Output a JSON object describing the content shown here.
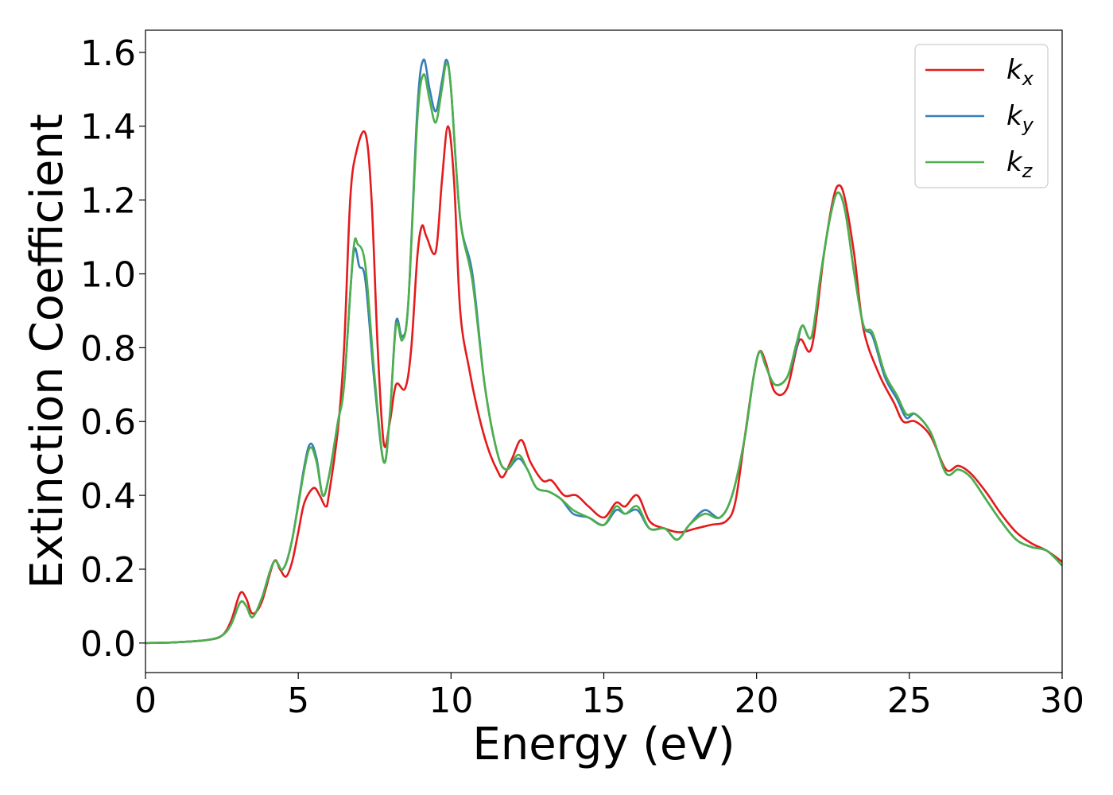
{
  "chart_data": {
    "type": "line",
    "title": "",
    "xlabel": "Energy (eV)",
    "ylabel": "Extinction Coefficient",
    "xlim": [
      0,
      30
    ],
    "ylim": [
      -0.08,
      1.66
    ],
    "xticks": [
      0,
      5,
      10,
      15,
      20,
      25,
      30
    ],
    "xtick_labels": [
      "0",
      "5",
      "10",
      "15",
      "20",
      "25",
      "30"
    ],
    "yticks": [
      0.0,
      0.2,
      0.4,
      0.6,
      0.8,
      1.0,
      1.2,
      1.4,
      1.6
    ],
    "ytick_labels": [
      "0.0",
      "0.2",
      "0.4",
      "0.6",
      "0.8",
      "1.0",
      "1.2",
      "1.4",
      "1.6"
    ],
    "grid": false,
    "legend_position": "top-right",
    "series": [
      {
        "name": "k",
        "subscript": "x",
        "color": "#e41a1c",
        "points": [
          [
            0,
            0
          ],
          [
            1,
            0.002
          ],
          [
            2,
            0.008
          ],
          [
            2.5,
            0.02
          ],
          [
            2.8,
            0.06
          ],
          [
            3.1,
            0.135
          ],
          [
            3.3,
            0.12
          ],
          [
            3.5,
            0.08
          ],
          [
            3.8,
            0.11
          ],
          [
            4.2,
            0.22
          ],
          [
            4.4,
            0.2
          ],
          [
            4.6,
            0.18
          ],
          [
            4.8,
            0.22
          ],
          [
            5.0,
            0.3
          ],
          [
            5.2,
            0.38
          ],
          [
            5.5,
            0.42
          ],
          [
            5.7,
            0.4
          ],
          [
            5.9,
            0.37
          ],
          [
            6.0,
            0.4
          ],
          [
            6.3,
            0.58
          ],
          [
            6.5,
            0.8
          ],
          [
            6.7,
            1.2
          ],
          [
            6.9,
            1.33
          ],
          [
            7.2,
            1.38
          ],
          [
            7.4,
            1.2
          ],
          [
            7.6,
            0.8
          ],
          [
            7.8,
            0.54
          ],
          [
            8.0,
            0.6
          ],
          [
            8.2,
            0.7
          ],
          [
            8.5,
            0.69
          ],
          [
            8.7,
            0.8
          ],
          [
            8.9,
            1.05
          ],
          [
            9.05,
            1.13
          ],
          [
            9.2,
            1.1
          ],
          [
            9.5,
            1.06
          ],
          [
            9.7,
            1.25
          ],
          [
            9.9,
            1.4
          ],
          [
            10.1,
            1.25
          ],
          [
            10.3,
            0.9
          ],
          [
            10.6,
            0.74
          ],
          [
            10.9,
            0.62
          ],
          [
            11.2,
            0.53
          ],
          [
            11.5,
            0.47
          ],
          [
            11.7,
            0.45
          ],
          [
            12.0,
            0.5
          ],
          [
            12.3,
            0.55
          ],
          [
            12.6,
            0.49
          ],
          [
            13.0,
            0.44
          ],
          [
            13.3,
            0.44
          ],
          [
            13.7,
            0.4
          ],
          [
            14.1,
            0.4
          ],
          [
            14.5,
            0.37
          ],
          [
            15.0,
            0.34
          ],
          [
            15.4,
            0.38
          ],
          [
            15.7,
            0.37
          ],
          [
            16.1,
            0.4
          ],
          [
            16.5,
            0.33
          ],
          [
            17.0,
            0.31
          ],
          [
            17.5,
            0.3
          ],
          [
            18.0,
            0.31
          ],
          [
            18.5,
            0.32
          ],
          [
            19.0,
            0.33
          ],
          [
            19.3,
            0.38
          ],
          [
            19.6,
            0.55
          ],
          [
            19.9,
            0.72
          ],
          [
            20.1,
            0.79
          ],
          [
            20.3,
            0.76
          ],
          [
            20.6,
            0.68
          ],
          [
            21.0,
            0.69
          ],
          [
            21.4,
            0.82
          ],
          [
            21.8,
            0.8
          ],
          [
            22.2,
            1.05
          ],
          [
            22.5,
            1.2
          ],
          [
            22.7,
            1.24
          ],
          [
            22.9,
            1.2
          ],
          [
            23.2,
            1.05
          ],
          [
            23.5,
            0.85
          ],
          [
            24.0,
            0.73
          ],
          [
            24.5,
            0.65
          ],
          [
            24.8,
            0.6
          ],
          [
            25.2,
            0.6
          ],
          [
            25.7,
            0.56
          ],
          [
            26.2,
            0.47
          ],
          [
            26.6,
            0.48
          ],
          [
            27.0,
            0.46
          ],
          [
            27.5,
            0.41
          ],
          [
            28.0,
            0.35
          ],
          [
            28.5,
            0.3
          ],
          [
            29.0,
            0.27
          ],
          [
            29.5,
            0.25
          ],
          [
            30.0,
            0.22
          ]
        ]
      },
      {
        "name": "k",
        "subscript": "y",
        "color": "#377eb8",
        "points": [
          [
            0,
            0
          ],
          [
            1,
            0.002
          ],
          [
            2,
            0.008
          ],
          [
            2.5,
            0.02
          ],
          [
            2.8,
            0.05
          ],
          [
            3.1,
            0.11
          ],
          [
            3.3,
            0.1
          ],
          [
            3.5,
            0.07
          ],
          [
            3.8,
            0.12
          ],
          [
            4.2,
            0.22
          ],
          [
            4.5,
            0.2
          ],
          [
            4.8,
            0.28
          ],
          [
            5.2,
            0.48
          ],
          [
            5.4,
            0.54
          ],
          [
            5.6,
            0.5
          ],
          [
            5.8,
            0.4
          ],
          [
            6.0,
            0.45
          ],
          [
            6.3,
            0.6
          ],
          [
            6.5,
            0.7
          ],
          [
            6.8,
            1.05
          ],
          [
            7.0,
            1.02
          ],
          [
            7.2,
            0.98
          ],
          [
            7.5,
            0.7
          ],
          [
            7.8,
            0.49
          ],
          [
            8.0,
            0.62
          ],
          [
            8.2,
            0.87
          ],
          [
            8.4,
            0.83
          ],
          [
            8.6,
            0.92
          ],
          [
            8.9,
            1.45
          ],
          [
            9.1,
            1.58
          ],
          [
            9.3,
            1.5
          ],
          [
            9.5,
            1.44
          ],
          [
            9.7,
            1.52
          ],
          [
            9.85,
            1.58
          ],
          [
            10.0,
            1.5
          ],
          [
            10.3,
            1.15
          ],
          [
            10.7,
            1.0
          ],
          [
            11.1,
            0.7
          ],
          [
            11.5,
            0.52
          ],
          [
            11.8,
            0.47
          ],
          [
            12.2,
            0.5
          ],
          [
            12.5,
            0.47
          ],
          [
            12.8,
            0.42
          ],
          [
            13.2,
            0.41
          ],
          [
            13.6,
            0.39
          ],
          [
            14.0,
            0.35
          ],
          [
            14.5,
            0.34
          ],
          [
            15.0,
            0.32
          ],
          [
            15.4,
            0.36
          ],
          [
            15.7,
            0.35
          ],
          [
            16.1,
            0.36
          ],
          [
            16.5,
            0.31
          ],
          [
            17.0,
            0.31
          ],
          [
            17.4,
            0.28
          ],
          [
            17.8,
            0.32
          ],
          [
            18.3,
            0.36
          ],
          [
            18.8,
            0.34
          ],
          [
            19.2,
            0.4
          ],
          [
            19.6,
            0.55
          ],
          [
            19.9,
            0.72
          ],
          [
            20.1,
            0.79
          ],
          [
            20.3,
            0.75
          ],
          [
            20.6,
            0.7
          ],
          [
            21.0,
            0.72
          ],
          [
            21.3,
            0.8
          ],
          [
            21.5,
            0.86
          ],
          [
            21.8,
            0.83
          ],
          [
            22.1,
            1.0
          ],
          [
            22.4,
            1.15
          ],
          [
            22.65,
            1.22
          ],
          [
            22.9,
            1.17
          ],
          [
            23.2,
            1.0
          ],
          [
            23.5,
            0.86
          ],
          [
            23.8,
            0.83
          ],
          [
            24.2,
            0.72
          ],
          [
            24.6,
            0.66
          ],
          [
            24.9,
            0.61
          ],
          [
            25.2,
            0.62
          ],
          [
            25.7,
            0.57
          ],
          [
            26.2,
            0.46
          ],
          [
            26.6,
            0.47
          ],
          [
            27.0,
            0.45
          ],
          [
            27.5,
            0.39
          ],
          [
            28.0,
            0.33
          ],
          [
            28.5,
            0.28
          ],
          [
            29.0,
            0.26
          ],
          [
            29.5,
            0.25
          ],
          [
            30.0,
            0.21
          ]
        ]
      },
      {
        "name": "k",
        "subscript": "z",
        "color": "#4daf4a",
        "points": [
          [
            0,
            0
          ],
          [
            1,
            0.002
          ],
          [
            2,
            0.008
          ],
          [
            2.5,
            0.02
          ],
          [
            2.8,
            0.05
          ],
          [
            3.1,
            0.11
          ],
          [
            3.3,
            0.1
          ],
          [
            3.5,
            0.07
          ],
          [
            3.8,
            0.12
          ],
          [
            4.2,
            0.22
          ],
          [
            4.5,
            0.2
          ],
          [
            4.8,
            0.28
          ],
          [
            5.2,
            0.47
          ],
          [
            5.4,
            0.53
          ],
          [
            5.6,
            0.49
          ],
          [
            5.8,
            0.4
          ],
          [
            6.0,
            0.45
          ],
          [
            6.3,
            0.6
          ],
          [
            6.5,
            0.7
          ],
          [
            6.8,
            1.06
          ],
          [
            6.95,
            1.08
          ],
          [
            7.2,
            1.02
          ],
          [
            7.5,
            0.72
          ],
          [
            7.8,
            0.49
          ],
          [
            8.0,
            0.62
          ],
          [
            8.2,
            0.86
          ],
          [
            8.4,
            0.82
          ],
          [
            8.6,
            0.92
          ],
          [
            8.9,
            1.42
          ],
          [
            9.1,
            1.54
          ],
          [
            9.3,
            1.47
          ],
          [
            9.5,
            1.41
          ],
          [
            9.7,
            1.5
          ],
          [
            9.85,
            1.57
          ],
          [
            10.0,
            1.5
          ],
          [
            10.3,
            1.15
          ],
          [
            10.7,
            0.98
          ],
          [
            11.1,
            0.7
          ],
          [
            11.5,
            0.52
          ],
          [
            11.8,
            0.47
          ],
          [
            12.2,
            0.51
          ],
          [
            12.5,
            0.47
          ],
          [
            12.8,
            0.42
          ],
          [
            13.2,
            0.41
          ],
          [
            13.6,
            0.39
          ],
          [
            14.0,
            0.36
          ],
          [
            14.5,
            0.34
          ],
          [
            15.0,
            0.32
          ],
          [
            15.4,
            0.37
          ],
          [
            15.7,
            0.35
          ],
          [
            16.1,
            0.37
          ],
          [
            16.5,
            0.31
          ],
          [
            17.0,
            0.31
          ],
          [
            17.4,
            0.28
          ],
          [
            17.8,
            0.32
          ],
          [
            18.3,
            0.35
          ],
          [
            18.8,
            0.34
          ],
          [
            19.2,
            0.4
          ],
          [
            19.6,
            0.55
          ],
          [
            19.9,
            0.72
          ],
          [
            20.1,
            0.79
          ],
          [
            20.3,
            0.75
          ],
          [
            20.6,
            0.7
          ],
          [
            21.0,
            0.72
          ],
          [
            21.3,
            0.81
          ],
          [
            21.5,
            0.86
          ],
          [
            21.8,
            0.83
          ],
          [
            22.1,
            1.0
          ],
          [
            22.4,
            1.15
          ],
          [
            22.65,
            1.22
          ],
          [
            22.9,
            1.17
          ],
          [
            23.2,
            1.0
          ],
          [
            23.5,
            0.86
          ],
          [
            23.8,
            0.84
          ],
          [
            24.2,
            0.73
          ],
          [
            24.6,
            0.67
          ],
          [
            24.9,
            0.62
          ],
          [
            25.2,
            0.62
          ],
          [
            25.7,
            0.57
          ],
          [
            26.2,
            0.46
          ],
          [
            26.6,
            0.47
          ],
          [
            27.0,
            0.45
          ],
          [
            27.5,
            0.39
          ],
          [
            28.0,
            0.33
          ],
          [
            28.5,
            0.28
          ],
          [
            29.0,
            0.26
          ],
          [
            29.5,
            0.25
          ],
          [
            30.0,
            0.21
          ]
        ]
      }
    ]
  }
}
